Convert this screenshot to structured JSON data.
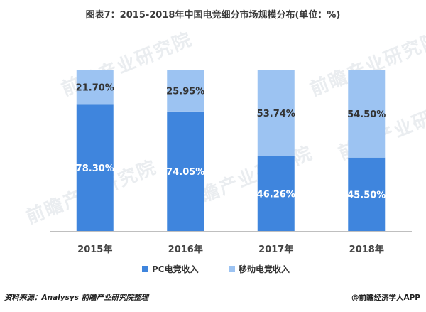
{
  "title": "图表7：2015-2018年中国电竞细分市场规模分布(单位：%)",
  "chart_data": {
    "type": "bar",
    "stacked": true,
    "percent": true,
    "categories": [
      "2015年",
      "2016年",
      "2017年",
      "2018年"
    ],
    "series": [
      {
        "name": "PC电竞收入",
        "values": [
          78.3,
          74.05,
          46.26,
          45.5
        ],
        "color": "#3f85dd"
      },
      {
        "name": "移动电竞收入",
        "values": [
          21.7,
          25.95,
          53.74,
          54.5
        ],
        "color": "#9cc3f2"
      }
    ],
    "data_labels": [
      [
        "78.30%",
        "74.05%",
        "46.26%",
        "45.50%"
      ],
      [
        "21.70%",
        "25.95%",
        "53.74%",
        "54.50%"
      ]
    ],
    "ylim": [
      0,
      100
    ],
    "grid": false,
    "legend_position": "bottom"
  },
  "watermark": "前瞻产业研究院",
  "footer": {
    "source": "资料来源：Analysys 前瞻产业研究院整理",
    "credit": "@前瞻经济学人APP"
  }
}
